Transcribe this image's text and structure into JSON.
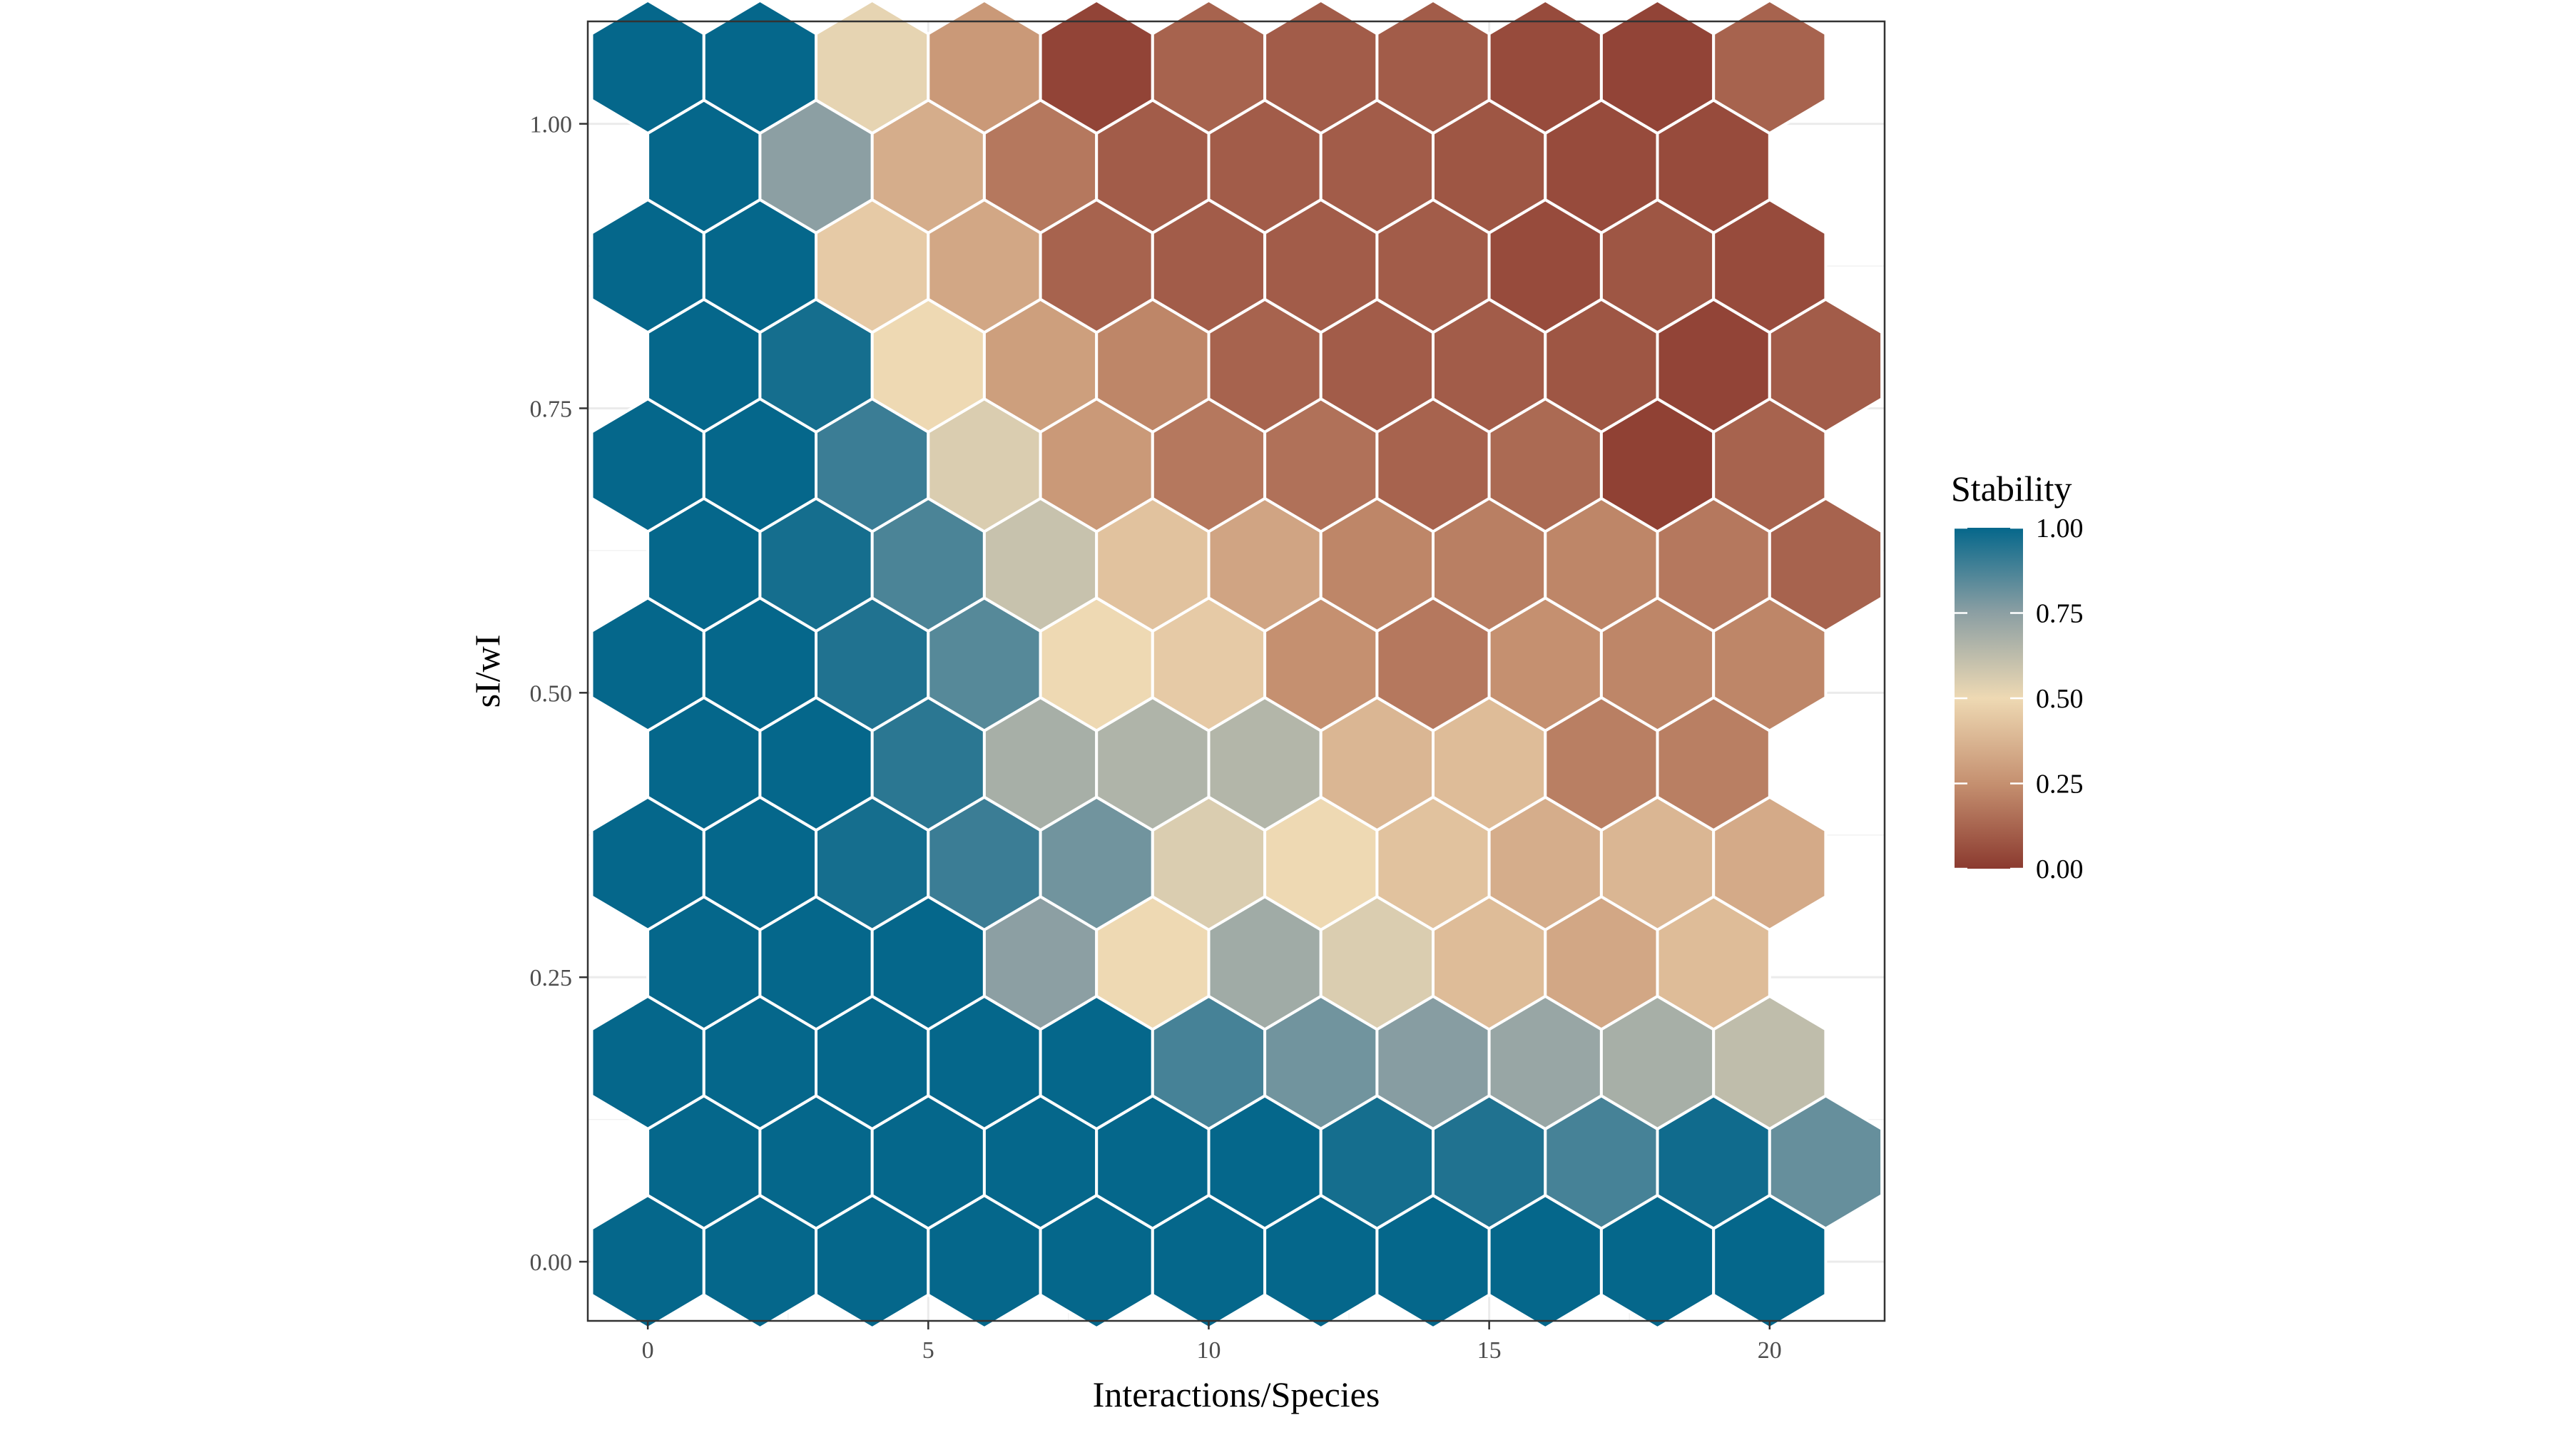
{
  "chart_data": {
    "type": "heatmap",
    "subtype": "hexbin",
    "title": "",
    "xlabel": "Interactions/Species",
    "ylabel": "sI/wI",
    "xlim": [
      -1.07,
      22.05
    ],
    "ylim": [
      -0.052,
      1.09
    ],
    "x_ticks": [
      0,
      5,
      10,
      15,
      20
    ],
    "x_tick_labels": [
      "0",
      "5",
      "10",
      "15",
      "20"
    ],
    "y_ticks": [
      0,
      0.25,
      0.5,
      0.75,
      1
    ],
    "y_tick_labels": [
      "0.00",
      "0.25",
      "0.50",
      "0.75",
      "1.00"
    ],
    "grid": true,
    "hex_grid": {
      "x_centers_even_rows": [
        0,
        2,
        4,
        6,
        8,
        10,
        12,
        14,
        16,
        18,
        20
      ],
      "x_centers_odd_rows": [
        1,
        3,
        5,
        7,
        9,
        11,
        13,
        15,
        17,
        19,
        21
      ],
      "y_centers": [
        0,
        0.0875,
        0.175,
        0.2625,
        0.35,
        0.4375,
        0.525,
        0.6125,
        0.7,
        0.7875,
        0.875,
        0.9625,
        1.05
      ]
    },
    "rows": [
      {
        "y": 0,
        "x_start": 0,
        "values": [
          1,
          1,
          1,
          1,
          1,
          1,
          1,
          1,
          1,
          1,
          1
        ]
      },
      {
        "y": 0.0875,
        "x_start": 1,
        "values": [
          1,
          1,
          1,
          1,
          1,
          1,
          0.97,
          0.95,
          0.88,
          0.98,
          0.82
        ]
      },
      {
        "y": 0.175,
        "x_start": 0,
        "values": [
          1,
          1,
          1,
          1,
          1,
          0.88,
          0.8,
          0.76,
          0.72,
          0.68,
          0.62
        ]
      },
      {
        "y": 0.2625,
        "x_start": 1,
        "values": [
          1,
          1,
          1,
          0.75,
          0.5,
          0.7,
          0.55,
          0.4,
          0.33,
          0.4
        ]
      },
      {
        "y": 0.35,
        "x_start": 0,
        "values": [
          1,
          1,
          0.97,
          0.9,
          0.8,
          0.55,
          0.5,
          0.42,
          0.35,
          0.38,
          0.34
        ]
      },
      {
        "y": 0.4375,
        "x_start": 1,
        "values": [
          1,
          1,
          0.93,
          0.68,
          0.66,
          0.65,
          0.38,
          0.4,
          0.2,
          0.2
        ]
      },
      {
        "y": 0.525,
        "x_start": 0,
        "values": [
          1,
          1,
          0.95,
          0.85,
          0.5,
          0.45,
          0.25,
          0.18,
          0.25,
          0.22,
          0.22
        ]
      },
      {
        "y": 0.6125,
        "x_start": 1,
        "values": [
          1,
          0.97,
          0.87,
          0.6,
          0.42,
          0.32,
          0.22,
          0.2,
          0.22,
          0.18,
          0.12
        ]
      },
      {
        "y": 0.7,
        "x_start": 0,
        "values": [
          1,
          1,
          0.9,
          0.55,
          0.28,
          0.18,
          0.16,
          0.12,
          0.14,
          0.02,
          0.12
        ]
      },
      {
        "y": 0.7875,
        "x_start": 1,
        "values": [
          1,
          0.97,
          0.5,
          0.3,
          0.22,
          0.12,
          0.1,
          0.1,
          0.08,
          0.03,
          0.1
        ]
      },
      {
        "y": 0.875,
        "x_start": 0,
        "values": [
          1,
          1,
          0.45,
          0.33,
          0.12,
          0.1,
          0.1,
          0.1,
          0.05,
          0.08,
          0.05
        ]
      },
      {
        "y": 0.9625,
        "x_start": 1,
        "values": [
          1,
          0.75,
          0.35,
          0.18,
          0.1,
          0.1,
          0.1,
          0.08,
          0.05,
          0.05
        ]
      },
      {
        "y": 1.05,
        "x_start": 0,
        "values": [
          1,
          1,
          0.52,
          0.28,
          0.03,
          0.12,
          0.1,
          0.1,
          0.05,
          0.03,
          0.12
        ]
      }
    ],
    "legend": {
      "title": "Stability",
      "placement": "right",
      "ticks": [
        1,
        0.75,
        0.5,
        0.25,
        0
      ],
      "tick_labels": [
        "1.00",
        "0.75",
        "0.50",
        "0.25",
        "0.00"
      ],
      "color_stops": [
        {
          "value": 0,
          "color": "#8b3a2f"
        },
        {
          "value": 0.25,
          "color": "#c59070"
        },
        {
          "value": 0.5,
          "color": "#eed9b3"
        },
        {
          "value": 0.75,
          "color": "#8c9fa3"
        },
        {
          "value": 1,
          "color": "#05678b"
        }
      ]
    }
  }
}
